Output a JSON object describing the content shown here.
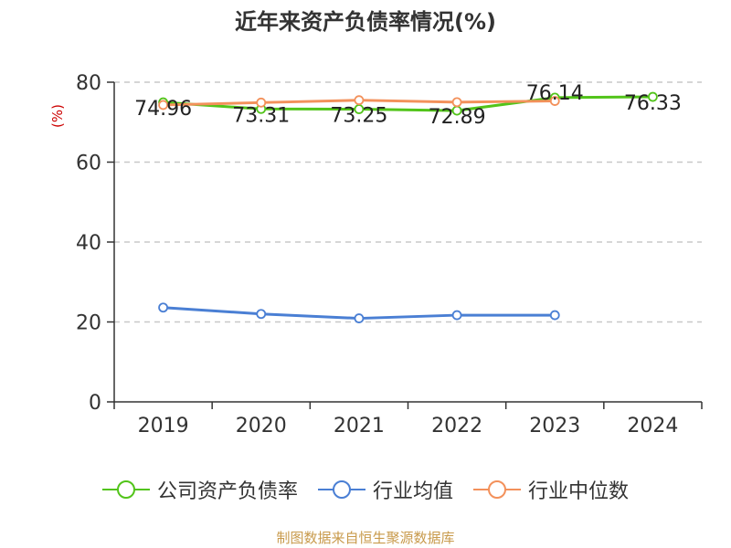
{
  "title": "近年来资产负债率情况(%)",
  "source": "制图数据来自恒生聚源数据库",
  "chart_data": {
    "type": "line",
    "title": "近年来资产负债率情况(%)",
    "ylabel": "(%)",
    "xlabel": "",
    "ylim": [
      0,
      80
    ],
    "yticks": [
      0,
      20,
      40,
      60,
      80
    ],
    "grid": true,
    "legend_position": "bottom",
    "categories": [
      "2019",
      "2020",
      "2021",
      "2022",
      "2023",
      "2024"
    ],
    "series": [
      {
        "name": "公司资产负债率",
        "color": "#52c41a",
        "values": [
          74.96,
          73.31,
          73.25,
          72.89,
          76.14,
          76.33
        ],
        "labels": [
          "74.96",
          "73.31",
          "73.25",
          "72.89",
          "76.14",
          "76.33"
        ]
      },
      {
        "name": "行业均值",
        "color": "#4a7fd4",
        "values": [
          23.6,
          22.0,
          20.9,
          21.7,
          21.7,
          null
        ]
      },
      {
        "name": "行业中位数",
        "color": "#f3915b",
        "values": [
          74.3,
          74.9,
          75.5,
          75.0,
          75.3,
          null
        ]
      }
    ]
  }
}
